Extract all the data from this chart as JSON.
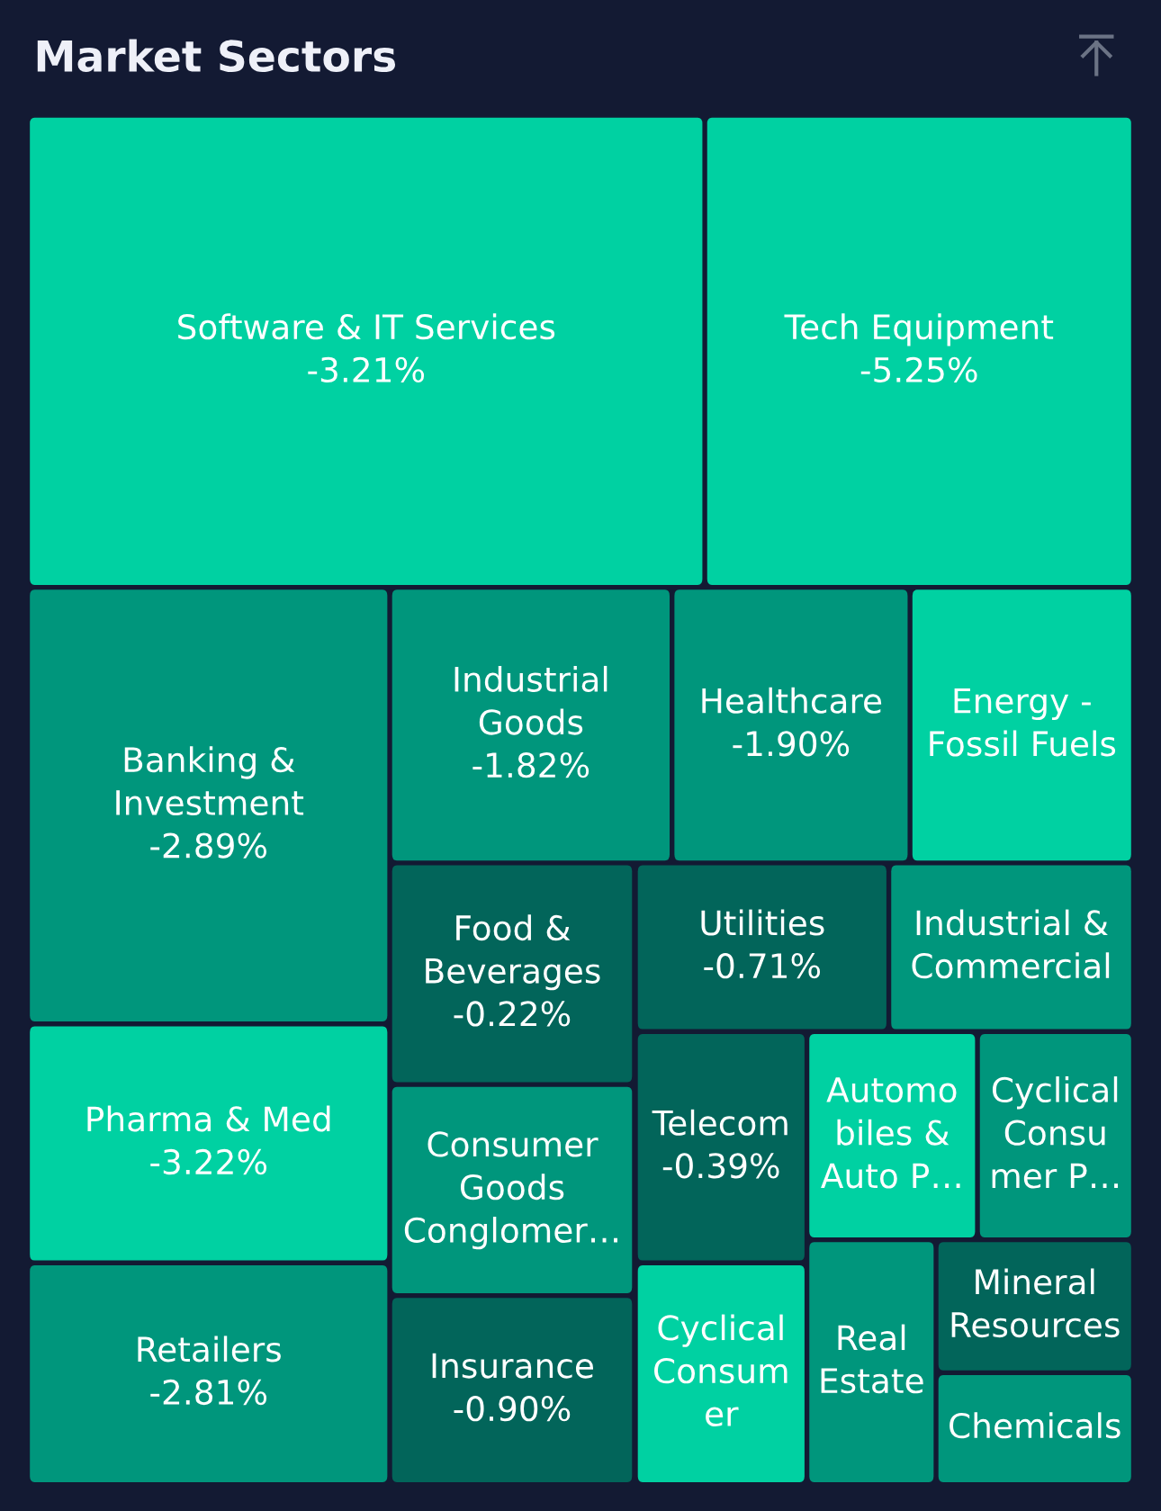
{
  "chart_data": {
    "type": "other",
    "title": "Market Sectors",
    "categories": [
      "Software & IT Services",
      "Tech Equipment",
      "Banking &\nInvestment",
      "Pharma & Med",
      "Retailers",
      "Industrial\nGoods",
      "Healthcare",
      "Energy -\nFossil Fuels",
      "Food &\nBeverages",
      "Utilities",
      "Industrial &\nCommercial",
      "Consumer\nGoods\nConglomer…",
      "Insurance",
      "Telecom",
      "Automo\nbiles &\nAuto P…",
      "Cyclical\nConsu\nmer P…",
      "Cyclical\nConsum\ner",
      "Real\nEstate",
      "Mineral\nResources",
      "Chemicals"
    ],
    "values": [
      -3.21,
      -5.25,
      -2.89,
      -3.22,
      -2.81,
      -1.82,
      -1.9,
      null,
      -0.22,
      -0.71,
      null,
      null,
      -0.9,
      -0.39,
      null,
      null,
      null,
      null,
      null,
      null
    ],
    "value_labels": [
      "-3.21%",
      "-5.25%",
      "-2.89%",
      "-3.22%",
      "-2.81%",
      "-1.82%",
      "-1.90%",
      null,
      "-0.22%",
      "-0.71%",
      null,
      null,
      "-0.90%",
      "-0.39%",
      null,
      null,
      null,
      null,
      null,
      null
    ],
    "colors": [
      "#00d1a2",
      "#00d1a2",
      "#00967c",
      "#00d1a2",
      "#00967c",
      "#00967c",
      "#00967c",
      "#00d1a2",
      "#02655a",
      "#02655a",
      "#00967c",
      "#00967c",
      "#02655a",
      "#02655a",
      "#00d1a2",
      "#00967c",
      "#00d1a2",
      "#00967c",
      "#02655a",
      "#00967c"
    ]
  }
}
